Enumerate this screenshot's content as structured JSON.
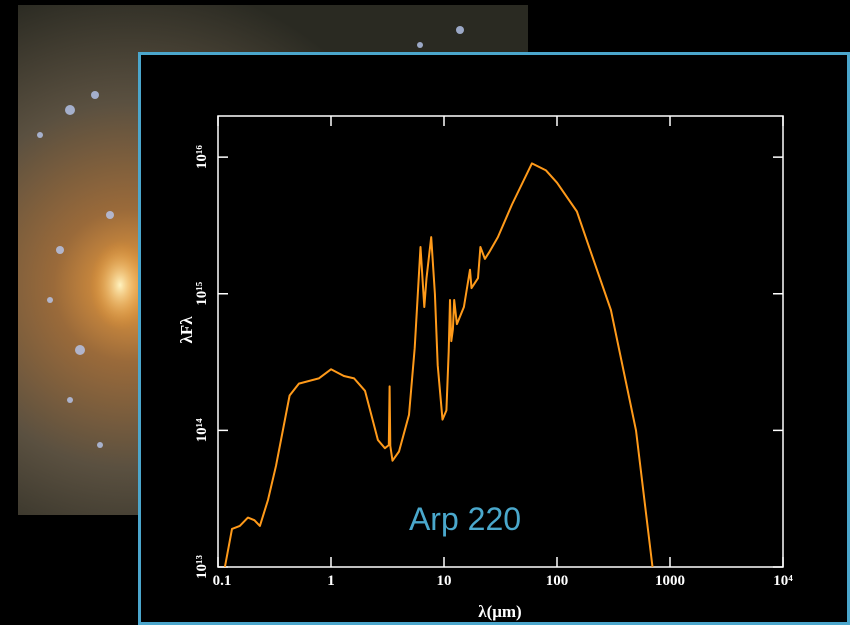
{
  "chart_data": {
    "type": "line",
    "xscale": "log",
    "yscale": "log",
    "xlabel": "λ(μm)",
    "ylabel": "λFλ",
    "annotation": "Arp 220",
    "annotation_color": "#4aa8cc",
    "xlim": [
      0.1,
      10000
    ],
    "ylim": [
      10000000000000.0,
      2e+16
    ],
    "xticks": [
      0.1,
      1,
      10,
      100,
      1000,
      {
        "value": 10000,
        "label": "10⁴"
      }
    ],
    "yticks": [
      {
        "value": 10000000000000.0,
        "label": "10¹³"
      },
      {
        "value": 100000000000000.0,
        "label": "10¹⁴"
      },
      {
        "value": 1000000000000000.0,
        "label": "10¹⁵"
      },
      {
        "value": 1e+16,
        "label": "10¹⁶"
      }
    ],
    "series": [
      {
        "color": "#ff9a1a",
        "x": [
          0.115,
          0.133,
          0.156,
          0.184,
          0.21,
          0.235,
          0.277,
          0.326,
          0.43,
          0.52,
          0.78,
          1.0,
          1.3,
          1.6,
          2.0,
          2.6,
          3.0,
          3.25,
          3.3,
          3.35,
          3.5,
          4.0,
          4.9,
          5.5,
          6.2,
          6.7,
          7.0,
          7.7,
          8.3,
          8.8,
          9.7,
          10.5,
          11.0,
          11.3,
          11.6,
          12.0,
          12.3,
          13.0,
          15,
          17,
          17.5,
          20,
          21,
          23,
          25,
          30,
          40,
          60,
          80,
          100,
          150,
          200,
          300,
          500,
          700
        ],
        "values": [
          10000000000000.0,
          19000000000000.0,
          20000000000000.0,
          23000000000000.0,
          22000000000000.0,
          20000000000000.0,
          31000000000000.0,
          55000000000000.0,
          180000000000000.0,
          220000000000000.0,
          240000000000000.0,
          280000000000000.0,
          250000000000000.0,
          240000000000000.0,
          195000000000000.0,
          85000000000000.0,
          74000000000000.0,
          78000000000000.0,
          210000000000000.0,
          77000000000000.0,
          60000000000000.0,
          70000000000000.0,
          130000000000000.0,
          400000000000000.0,
          2200000000000000.0,
          800000000000000.0,
          1300000000000000.0,
          2600000000000000.0,
          1000000000000000.0,
          300000000000000.0,
          120000000000000.0,
          140000000000000.0,
          380000000000000.0,
          900000000000000.0,
          450000000000000.0,
          550000000000000.0,
          900000000000000.0,
          600000000000000.0,
          800000000000000.0,
          1500000000000000.0,
          1100000000000000.0,
          1300000000000000.0,
          2200000000000000.0,
          1800000000000000.0,
          2000000000000000.0,
          2600000000000000.0,
          4500000000000000.0,
          9000000000000000.0,
          8000000000000000.0,
          6500000000000000.0,
          4000000000000000.0,
          2000000000000000.0,
          760000000000000.0,
          100000000000000.0,
          10000000000000.0
        ]
      }
    ]
  }
}
